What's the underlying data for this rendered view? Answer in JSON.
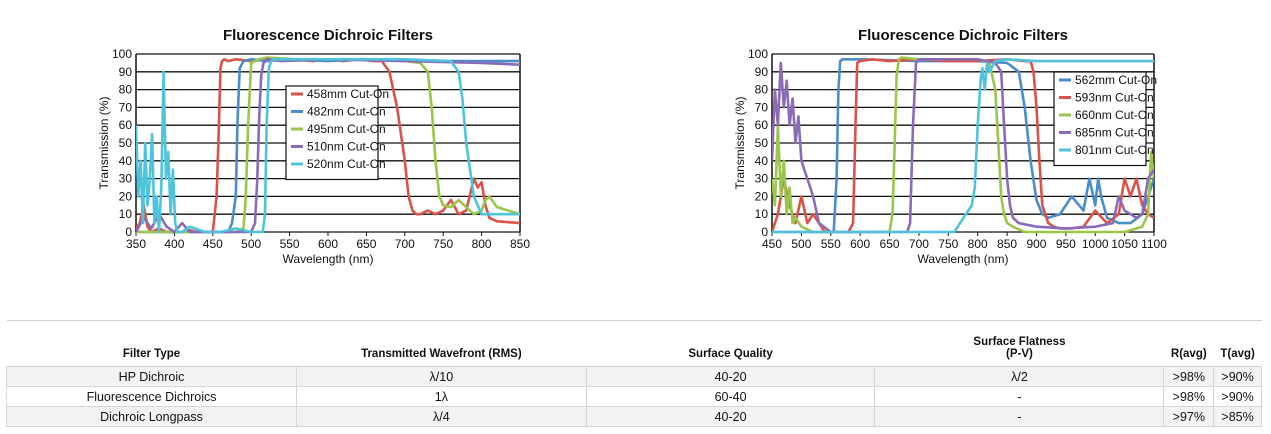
{
  "chart_data": [
    {
      "type": "line",
      "title": "Fluorescence Dichroic Filters",
      "xlabel": "Wavelength (nm)",
      "ylabel": "Transmission (%)",
      "xlim": [
        350,
        850
      ],
      "ylim": [
        0,
        100
      ],
      "xticks": [
        350,
        400,
        450,
        500,
        550,
        600,
        650,
        700,
        750,
        800,
        850
      ],
      "yticks": [
        0,
        10,
        20,
        30,
        40,
        50,
        60,
        70,
        80,
        90,
        100
      ],
      "grid": "horizontal",
      "legend_position": "center",
      "series": [
        {
          "name": "458mm Cut-On",
          "color": "#d9534a",
          "x": [
            350,
            355,
            360,
            365,
            370,
            380,
            390,
            400,
            410,
            420,
            430,
            440,
            450,
            455,
            458,
            460,
            462,
            465,
            470,
            480,
            500,
            520,
            550,
            580,
            600,
            620,
            640,
            660,
            670,
            680,
            690,
            700,
            705,
            710,
            715,
            720,
            730,
            740,
            750,
            760,
            770,
            780,
            790,
            795,
            800,
            805,
            810,
            820,
            850
          ],
          "y": [
            2,
            5,
            15,
            3,
            0,
            2,
            0,
            0,
            0,
            1,
            0,
            0,
            0,
            20,
            60,
            92,
            96,
            97,
            96,
            97,
            96,
            97,
            97,
            96,
            97,
            96,
            97,
            96,
            96,
            90,
            70,
            40,
            20,
            12,
            10,
            10,
            12,
            10,
            12,
            18,
            10,
            12,
            30,
            25,
            28,
            15,
            8,
            6,
            5
          ]
        },
        {
          "name": "482nm Cut-On",
          "color": "#4a8ccc",
          "x": [
            350,
            360,
            380,
            400,
            420,
            440,
            460,
            470,
            475,
            480,
            482,
            485,
            490,
            500,
            520,
            550,
            600,
            650,
            700,
            750,
            800,
            850
          ],
          "y": [
            0,
            0,
            0,
            0,
            0,
            0,
            0,
            0,
            5,
            20,
            60,
            92,
            96,
            97,
            96,
            97,
            96,
            97,
            96,
            96,
            96,
            96
          ]
        },
        {
          "name": "495nm Cut-On",
          "color": "#9cc54b",
          "x": [
            350,
            400,
            450,
            480,
            490,
            493,
            496,
            500,
            510,
            520,
            560,
            600,
            650,
            700,
            720,
            730,
            735,
            740,
            745,
            750,
            760,
            770,
            780,
            790,
            800,
            805,
            810,
            820,
            850
          ],
          "y": [
            0,
            0,
            0,
            0,
            2,
            20,
            60,
            95,
            97,
            98,
            97,
            97,
            97,
            96,
            95,
            90,
            70,
            40,
            20,
            15,
            14,
            18,
            14,
            10,
            12,
            18,
            20,
            14,
            10
          ]
        },
        {
          "name": "510nm Cut-On",
          "color": "#8a6bb8",
          "x": [
            350,
            360,
            370,
            380,
            390,
            400,
            410,
            420,
            430,
            440,
            450,
            460,
            480,
            500,
            505,
            508,
            510,
            513,
            516,
            520,
            540,
            600,
            700,
            800,
            850
          ],
          "y": [
            0,
            8,
            2,
            10,
            3,
            0,
            5,
            0,
            0,
            0,
            0,
            0,
            0,
            0,
            5,
            30,
            60,
            88,
            95,
            97,
            96,
            97,
            96,
            95,
            94
          ]
        },
        {
          "name": "520nm Cut-On",
          "color": "#4ec3dc",
          "x": [
            350,
            353,
            356,
            359,
            362,
            365,
            368,
            371,
            374,
            377,
            380,
            383,
            386,
            389,
            392,
            395,
            398,
            401,
            404,
            410,
            420,
            440,
            460,
            480,
            500,
            515,
            518,
            520,
            523,
            526,
            530,
            560,
            600,
            650,
            700,
            760,
            770,
            775,
            780,
            790,
            800,
            810,
            820,
            850
          ],
          "y": [
            60,
            20,
            40,
            5,
            50,
            15,
            30,
            55,
            5,
            20,
            0,
            25,
            90,
            30,
            45,
            10,
            35,
            5,
            0,
            0,
            3,
            0,
            0,
            2,
            0,
            0,
            10,
            60,
            92,
            96,
            97,
            97,
            97,
            97,
            97,
            96,
            90,
            75,
            50,
            20,
            10,
            10,
            10,
            10
          ]
        }
      ]
    },
    {
      "type": "line",
      "title": "Fluorescence Dichroic Filters",
      "xlabel": "Wavelength (nm)",
      "ylabel": "Transmission (%)",
      "xlim": [
        450,
        1100
      ],
      "ylim": [
        0,
        100
      ],
      "xticks": [
        450,
        500,
        550,
        600,
        650,
        700,
        750,
        800,
        850,
        900,
        950,
        1000,
        1050,
        1100
      ],
      "yticks": [
        0,
        10,
        20,
        30,
        40,
        50,
        60,
        70,
        80,
        90,
        100
      ],
      "grid": "horizontal",
      "legend_position": "top-right",
      "series": [
        {
          "name": "562mm Cut-On",
          "color": "#4a8ccc",
          "x": [
            450,
            500,
            540,
            555,
            560,
            563,
            566,
            570,
            600,
            700,
            800,
            850,
            870,
            880,
            890,
            900,
            910,
            920,
            940,
            960,
            980,
            990,
            1000,
            1005,
            1010,
            1020,
            1040,
            1060,
            1080,
            1100
          ],
          "y": [
            0,
            0,
            0,
            0,
            30,
            80,
            96,
            97,
            97,
            96,
            96,
            95,
            90,
            70,
            40,
            18,
            10,
            8,
            10,
            20,
            12,
            30,
            15,
            30,
            20,
            8,
            5,
            5,
            10,
            30
          ]
        },
        {
          "name": "593nm Cut-On",
          "color": "#d9534a",
          "x": [
            450,
            460,
            470,
            480,
            490,
            500,
            510,
            520,
            540,
            560,
            580,
            588,
            592,
            595,
            600,
            620,
            650,
            700,
            750,
            800,
            850,
            880,
            890,
            895,
            900,
            905,
            910,
            920,
            930,
            940,
            960,
            980,
            1000,
            1020,
            1040,
            1050,
            1060,
            1070,
            1080,
            1090,
            1100
          ],
          "y": [
            0,
            10,
            30,
            15,
            5,
            20,
            5,
            10,
            0,
            0,
            0,
            5,
            60,
            95,
            96,
            97,
            96,
            97,
            96,
            96,
            97,
            96,
            96,
            90,
            70,
            40,
            15,
            5,
            3,
            2,
            2,
            3,
            12,
            5,
            10,
            30,
            20,
            30,
            15,
            10,
            8
          ]
        },
        {
          "name": "660nm Cut-On",
          "color": "#9cc54b",
          "x": [
            450,
            455,
            460,
            465,
            470,
            475,
            480,
            485,
            490,
            500,
            520,
            540,
            560,
            600,
            640,
            650,
            655,
            658,
            662,
            666,
            670,
            700,
            750,
            800,
            820,
            830,
            835,
            840,
            845,
            850,
            860,
            880,
            900,
            950,
            1000,
            1050,
            1080,
            1090,
            1095,
            1100
          ],
          "y": [
            30,
            15,
            60,
            20,
            40,
            10,
            25,
            5,
            8,
            3,
            0,
            0,
            0,
            0,
            0,
            0,
            10,
            40,
            88,
            97,
            98,
            97,
            97,
            97,
            95,
            80,
            50,
            20,
            10,
            5,
            3,
            0,
            0,
            0,
            0,
            0,
            3,
            10,
            45,
            30
          ]
        },
        {
          "name": "685nm Cut-On",
          "color": "#8a6bb8",
          "x": [
            450,
            455,
            460,
            465,
            470,
            475,
            480,
            485,
            490,
            495,
            500,
            510,
            520,
            530,
            550,
            600,
            660,
            680,
            685,
            690,
            695,
            700,
            750,
            800,
            830,
            840,
            845,
            850,
            855,
            860,
            870,
            900,
            950,
            1000,
            1030,
            1040,
            1050,
            1060,
            1070,
            1080,
            1090,
            1100
          ],
          "y": [
            40,
            80,
            60,
            95,
            70,
            85,
            60,
            75,
            50,
            65,
            40,
            30,
            20,
            5,
            0,
            0,
            0,
            0,
            5,
            60,
            95,
            97,
            97,
            97,
            95,
            90,
            60,
            30,
            15,
            8,
            5,
            3,
            2,
            3,
            5,
            20,
            12,
            10,
            8,
            10,
            30,
            35
          ]
        },
        {
          "name": "801nm Cut-On",
          "color": "#4ec3dc",
          "x": [
            450,
            500,
            550,
            600,
            650,
            700,
            750,
            760,
            770,
            780,
            790,
            795,
            800,
            805,
            808,
            812,
            816,
            820,
            830,
            850,
            900,
            950,
            1000,
            1050,
            1100
          ],
          "y": [
            0,
            0,
            0,
            0,
            0,
            0,
            0,
            0,
            5,
            10,
            15,
            25,
            60,
            85,
            92,
            80,
            95,
            90,
            96,
            97,
            96,
            96,
            96,
            96,
            96
          ]
        }
      ]
    }
  ],
  "table": {
    "headers": [
      {
        "line1": "Filter Type",
        "line2": ""
      },
      {
        "line1": "Transmitted Wavefront (RMS)",
        "line2": ""
      },
      {
        "line1": "Surface Quality",
        "line2": ""
      },
      {
        "line1": "Surface Flatness",
        "line2": "(P-V)"
      },
      {
        "line1": "R(avg)",
        "line2": ""
      },
      {
        "line1": "T(avg)",
        "line2": ""
      }
    ],
    "rows": [
      [
        "HP Dichroic",
        "λ/10",
        "40-20",
        "λ/2",
        ">98%",
        ">90%"
      ],
      [
        "Fluorescence Dichroics",
        "1λ",
        "60-40",
        "-",
        ">98%",
        ">90%"
      ],
      [
        "Dichroic Longpass",
        "λ/4",
        "40-20",
        "-",
        ">97%",
        ">85%"
      ]
    ]
  }
}
